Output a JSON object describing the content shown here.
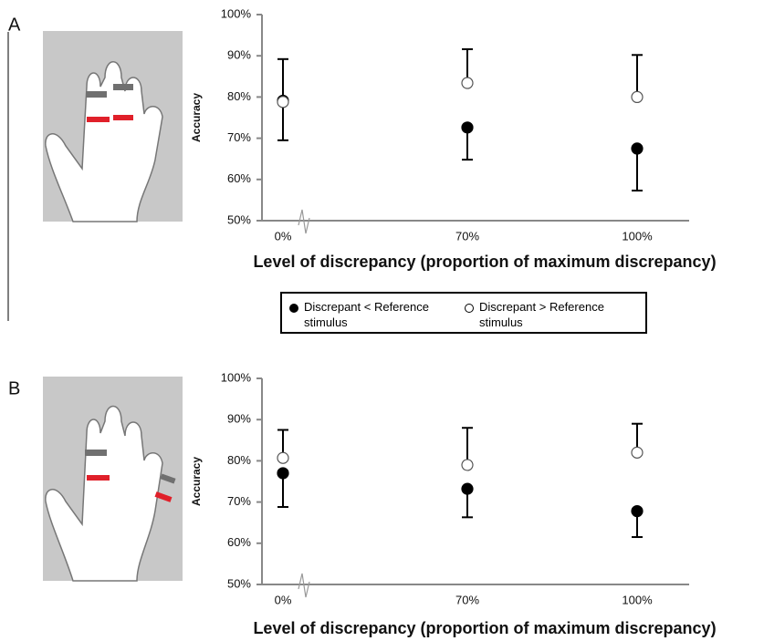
{
  "chart_data": [
    {
      "type": "scatter",
      "panel": "A",
      "y_label": "Accuracy",
      "x_label": "Level of discrepancy (proportion of maximum discrepancy)",
      "categories": [
        "0%",
        "70%",
        "100%"
      ],
      "ylim": [
        50,
        100
      ],
      "yticks": [
        {
          "value": 50,
          "label": "50%"
        },
        {
          "value": 60,
          "label": "60%"
        },
        {
          "value": 70,
          "label": "70%"
        },
        {
          "value": 80,
          "label": "80%"
        },
        {
          "value": 90,
          "label": "90%"
        },
        {
          "value": 100,
          "label": "100%"
        }
      ],
      "axis_break": true,
      "series": [
        {
          "name": "Discrepant < Reference stimulus",
          "color": "#000000",
          "marker_fill": "#000000",
          "error_direction": "down",
          "values": [
            79.1,
            72.6,
            67.5
          ],
          "errors": [
            9.6,
            7.8,
            10.2
          ]
        },
        {
          "name": "Discrepant > Reference stimulus",
          "color": "#000000",
          "marker_fill": "#ffffff",
          "error_direction": "up",
          "values": [
            78.8,
            83.4,
            80
          ],
          "errors": [
            10.4,
            8.2,
            10.2
          ]
        }
      ]
    },
    {
      "type": "scatter",
      "panel": "B",
      "y_label": "Accuracy",
      "x_label": "Level of discrepancy (proportion of maximum discrepancy)",
      "categories": [
        "0%",
        "70%",
        "100%"
      ],
      "ylim": [
        50,
        100
      ],
      "yticks": [
        {
          "value": 50,
          "label": "50%"
        },
        {
          "value": 60,
          "label": "60%"
        },
        {
          "value": 70,
          "label": "70%"
        },
        {
          "value": 80,
          "label": "80%"
        },
        {
          "value": 90,
          "label": "90%"
        },
        {
          "value": 100,
          "label": "100%"
        }
      ],
      "axis_break": true,
      "series": [
        {
          "name": "Discrepant < Reference stimulus",
          "color": "#000000",
          "marker_fill": "#000000",
          "error_direction": "down",
          "values": [
            77,
            73.2,
            67.8
          ],
          "errors": [
            8.2,
            6.9,
            6.3
          ]
        },
        {
          "name": "Discrepant > Reference stimulus",
          "color": "#000000",
          "marker_fill": "#ffffff",
          "error_direction": "up",
          "values": [
            80.7,
            79,
            82
          ],
          "errors": [
            6.8,
            9,
            7
          ]
        }
      ]
    }
  ]
}
